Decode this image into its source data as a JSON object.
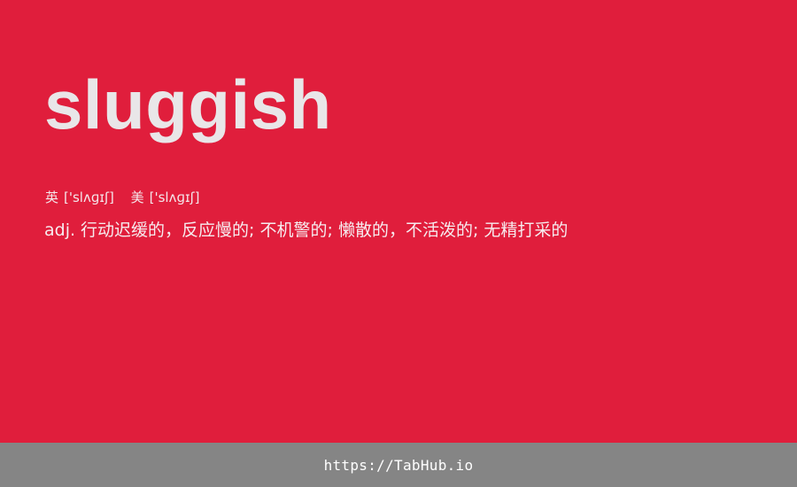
{
  "entry": {
    "word": "sluggish",
    "phonetics": {
      "uk_label": "英",
      "uk_ipa": "['slʌɡɪʃ]",
      "us_label": "美",
      "us_ipa": "['slʌɡɪʃ]"
    },
    "definition": "adj. 行动迟缓的，反应慢的; 不机警的; 懒散的，不活泼的; 无精打采的"
  },
  "footer": {
    "link_text": "https://TabHub.io"
  },
  "colors": {
    "background": "#e01e3c",
    "word_text": "#e9e6e8",
    "footer_bar": "#858585"
  }
}
